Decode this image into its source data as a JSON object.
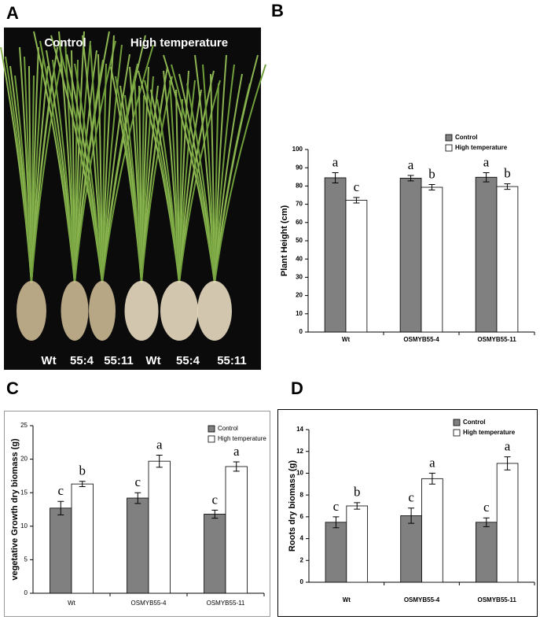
{
  "photo": {
    "panel_label": "A",
    "conditions": [
      "Control",
      "High temperature"
    ],
    "genotypes": [
      "Wt",
      "55:4",
      "55:11",
      "Wt",
      "55:4",
      "55:11"
    ]
  },
  "chart_data": [
    {
      "type": "bar",
      "panel_label": "B",
      "ylabel": "Plant Height (cm)",
      "categories": [
        "Wt",
        "OSMYB55-4",
        "OSMYB55-11"
      ],
      "ylim": [
        0,
        100
      ],
      "yticks": [
        0,
        10,
        20,
        30,
        40,
        50,
        60,
        70,
        80,
        90,
        100
      ],
      "bold": true,
      "series": [
        {
          "name": "Control",
          "color": "#808080",
          "values": [
            84.5,
            84.3,
            84.8
          ],
          "errors": [
            2.8,
            1.5,
            2.5
          ],
          "annotations": [
            "a",
            "a",
            "a"
          ]
        },
        {
          "name": "High temperature",
          "color": "#ffffff",
          "values": [
            72.2,
            79.3,
            79.7
          ],
          "errors": [
            1.5,
            1.5,
            1.5
          ],
          "annotations": [
            "c",
            "b",
            "b"
          ]
        }
      ]
    },
    {
      "type": "bar",
      "panel_label": "C",
      "ylabel": "vegetative Growth dry biomass (g)",
      "categories": [
        "Wt",
        "OSMYB55-4",
        "OSMYB55-11"
      ],
      "ylim": [
        0,
        25
      ],
      "yticks": [
        0,
        5,
        10,
        15,
        20,
        25
      ],
      "bold": false,
      "series": [
        {
          "name": "Control",
          "color": "#808080",
          "values": [
            12.7,
            14.2,
            11.8
          ],
          "errors": [
            1.0,
            0.8,
            0.6
          ],
          "annotations": [
            "c",
            "c",
            "c"
          ]
        },
        {
          "name": "High temperature",
          "color": "#ffffff",
          "values": [
            16.3,
            19.7,
            18.9
          ],
          "errors": [
            0.4,
            0.9,
            0.7
          ],
          "annotations": [
            "b",
            "a",
            "a"
          ]
        }
      ]
    },
    {
      "type": "bar",
      "panel_label": "D",
      "ylabel": "Roots dry biomass (g)",
      "categories": [
        "Wt",
        "OSMYB55-4",
        "OSMYB55-11"
      ],
      "ylim": [
        0,
        14
      ],
      "yticks": [
        0,
        2,
        4,
        6,
        8,
        10,
        12,
        14
      ],
      "bold": true,
      "series": [
        {
          "name": "Control",
          "color": "#808080",
          "values": [
            5.5,
            6.1,
            5.5
          ],
          "errors": [
            0.5,
            0.7,
            0.4
          ],
          "annotations": [
            "c",
            "c",
            "c"
          ]
        },
        {
          "name": "High temperature",
          "color": "#ffffff",
          "values": [
            7.0,
            9.5,
            10.9
          ],
          "errors": [
            0.3,
            0.5,
            0.6
          ],
          "annotations": [
            "b",
            "a",
            "a"
          ]
        }
      ]
    }
  ]
}
